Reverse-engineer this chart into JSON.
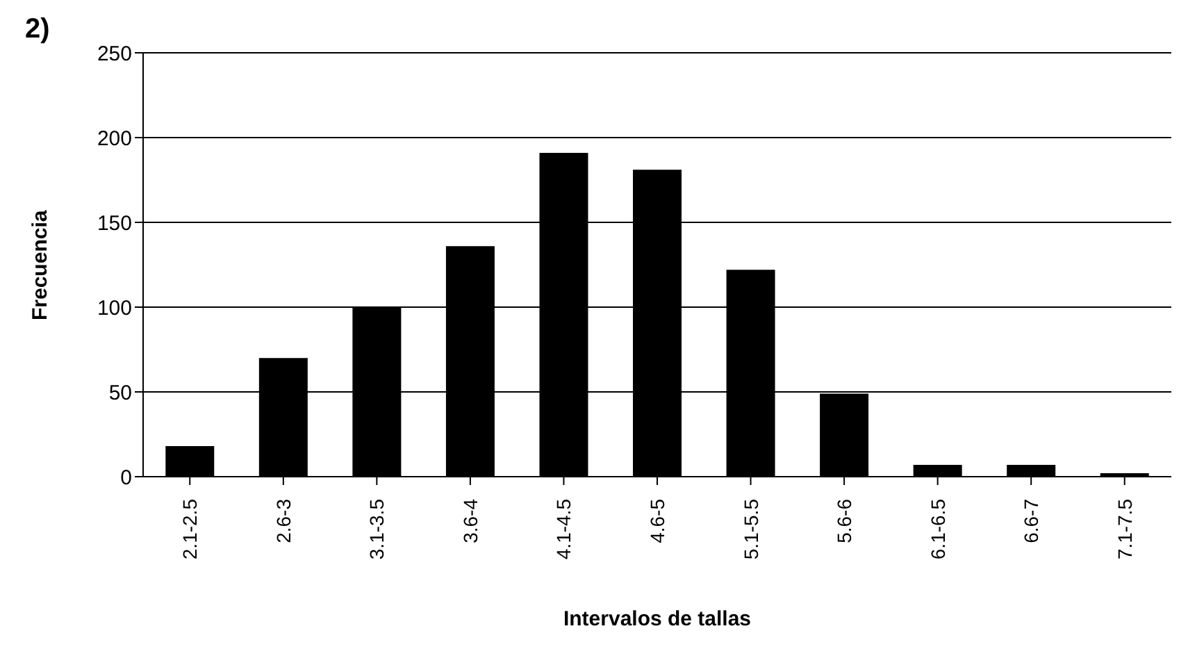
{
  "chart_data": {
    "type": "bar",
    "title": "2)",
    "xlabel": "Intervalos de tallas",
    "ylabel": "Frecuencia",
    "categories": [
      "2.1-2.5",
      "2.6-3",
      "3.1-3.5",
      "3.6-4",
      "4.1-4.5",
      "4.6-5",
      "5.1-5.5",
      "5.6-6",
      "6.1-6.5",
      "6.6-7",
      "7.1-7.5"
    ],
    "values": [
      18,
      70,
      100,
      136,
      191,
      181,
      122,
      49,
      7,
      7,
      2
    ],
    "color": "#000000",
    "ylim": [
      0,
      250
    ],
    "yticks": [
      0,
      50,
      100,
      150,
      200,
      250
    ],
    "grid": "y"
  }
}
